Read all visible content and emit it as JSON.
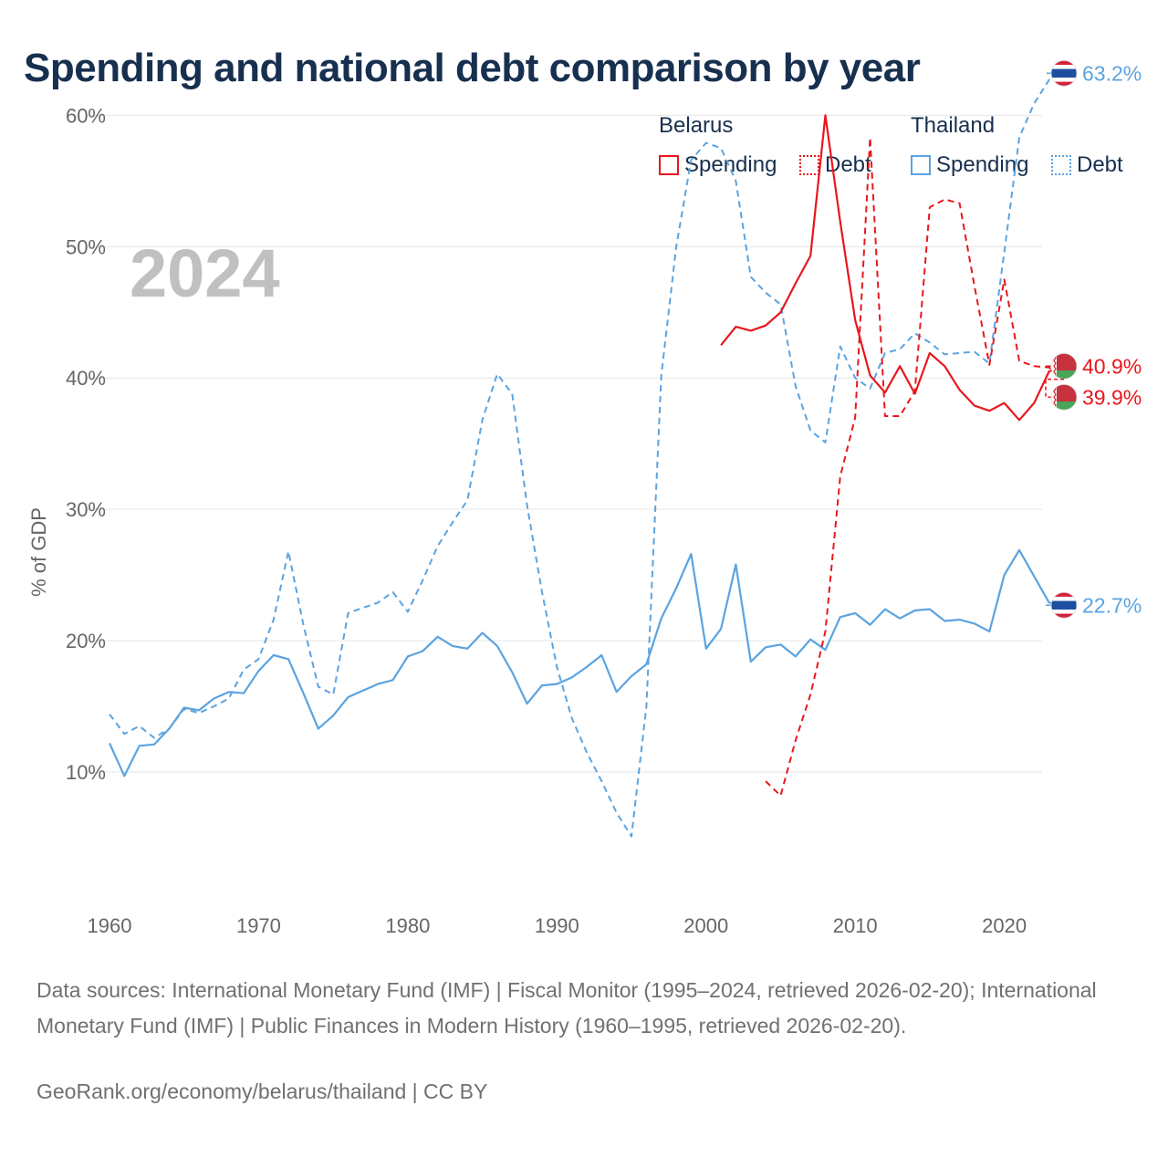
{
  "title": "Spending and national debt comparison by year",
  "legend": {
    "groups": [
      {
        "country": "Belarus",
        "spending_label": "Spending",
        "debt_label": "Debt",
        "color": "#e8171d"
      },
      {
        "country": "Thailand",
        "spending_label": "Spending",
        "debt_label": "Debt",
        "color": "#5ba3e0"
      }
    ]
  },
  "year_watermark": "2024",
  "footer": {
    "sources": "Data sources: International Monetary Fund (IMF) | Fiscal Monitor (1995–2024, retrieved 2026-02-20); International Monetary Fund (IMF) | Public Finances in Modern History (1960–1995, retrieved 2026-02-20).",
    "credit": "GeoRank.org/economy/belarus/thailand | CC BY"
  },
  "chart_data": {
    "type": "line",
    "title": "Spending and national debt comparison by year",
    "xlabel": "",
    "ylabel": "% of GDP",
    "xlim": [
      1960,
      2024
    ],
    "ylim": [
      0,
      66
    ],
    "x_ticks": [
      1960,
      1970,
      1980,
      1990,
      2000,
      2010,
      2020
    ],
    "y_ticks": [
      10,
      20,
      30,
      40,
      50,
      60
    ],
    "y_tick_labels": [
      "10%",
      "20%",
      "30%",
      "40%",
      "50%",
      "60%"
    ],
    "grid": true,
    "series": [
      {
        "name": "Thailand Spending",
        "country": "Thailand",
        "metric": "Spending",
        "color": "#5ba3e0",
        "dash": "solid",
        "end_label": "22.7%",
        "x": [
          1960,
          1961,
          1962,
          1963,
          1964,
          1965,
          1966,
          1967,
          1968,
          1969,
          1970,
          1971,
          1972,
          1973,
          1974,
          1975,
          1976,
          1977,
          1978,
          1979,
          1980,
          1981,
          1982,
          1983,
          1984,
          1985,
          1986,
          1987,
          1988,
          1989,
          1990,
          1991,
          1992,
          1993,
          1994,
          1995,
          1996,
          1997,
          1998,
          1999,
          2000,
          2001,
          2002,
          2003,
          2004,
          2005,
          2006,
          2007,
          2008,
          2009,
          2010,
          2011,
          2012,
          2013,
          2014,
          2015,
          2016,
          2017,
          2018,
          2019,
          2020,
          2021,
          2022,
          2023,
          2024
        ],
        "values": [
          12.2,
          9.7,
          12.0,
          12.1,
          13.3,
          14.9,
          14.7,
          15.6,
          16.1,
          16.0,
          17.7,
          18.9,
          18.6,
          16.0,
          13.3,
          14.3,
          15.7,
          16.2,
          16.7,
          17.0,
          18.8,
          19.2,
          20.3,
          19.6,
          19.4,
          20.6,
          19.6,
          17.6,
          15.2,
          16.6,
          16.7,
          17.2,
          18.0,
          18.9,
          16.1,
          17.3,
          18.2,
          21.7,
          24.0,
          26.6,
          19.4,
          20.9,
          25.8,
          18.4,
          19.5,
          19.7,
          18.8,
          20.1,
          19.3,
          21.8,
          22.1,
          21.2,
          22.4,
          21.7,
          22.3,
          22.4,
          21.5,
          21.6,
          21.3,
          20.7,
          25.0,
          26.9,
          24.9,
          22.9,
          22.7
        ]
      },
      {
        "name": "Thailand Debt",
        "country": "Thailand",
        "metric": "Debt",
        "color": "#5ba3e0",
        "dash": "dashed",
        "end_label": "63.2%",
        "x": [
          1960,
          1961,
          1962,
          1963,
          1964,
          1965,
          1966,
          1967,
          1968,
          1969,
          1970,
          1971,
          1972,
          1973,
          1974,
          1975,
          1976,
          1977,
          1978,
          1979,
          1980,
          1981,
          1982,
          1983,
          1984,
          1985,
          1986,
          1987,
          1988,
          1989,
          1990,
          1991,
          1992,
          1993,
          1994,
          1995,
          1996,
          1997,
          1998,
          1999,
          2000,
          2001,
          2002,
          2003,
          2004,
          2005,
          2006,
          2007,
          2008,
          2009,
          2010,
          2011,
          2012,
          2013,
          2014,
          2015,
          2016,
          2017,
          2018,
          2019,
          2020,
          2021,
          2022,
          2023,
          2024
        ],
        "values": [
          14.4,
          12.9,
          13.5,
          12.6,
          13.3,
          14.8,
          14.5,
          15.0,
          15.6,
          17.8,
          18.6,
          21.6,
          26.8,
          21.2,
          16.5,
          15.9,
          22.1,
          22.5,
          22.9,
          23.7,
          22.2,
          24.6,
          27.2,
          29.0,
          30.7,
          36.8,
          40.3,
          38.8,
          30.3,
          23.7,
          18.0,
          14.1,
          11.5,
          9.3,
          6.9,
          5.1,
          15.0,
          40.2,
          50.0,
          56.6,
          57.9,
          57.5,
          55.0,
          47.7,
          46.5,
          45.6,
          39.4,
          36.0,
          35.1,
          42.4,
          40.0,
          39.2,
          41.9,
          42.2,
          43.4,
          42.7,
          41.8,
          41.9,
          42.0,
          41.1,
          49.6,
          58.3,
          60.9,
          62.7,
          63.2
        ]
      },
      {
        "name": "Belarus Spending",
        "country": "Belarus",
        "metric": "Spending",
        "color": "#e8171d",
        "dash": "solid",
        "end_label": "40.9%",
        "x": [
          2001,
          2002,
          2003,
          2004,
          2005,
          2006,
          2007,
          2008,
          2009,
          2010,
          2011,
          2012,
          2013,
          2014,
          2015,
          2016,
          2017,
          2018,
          2019,
          2020,
          2021,
          2022,
          2023,
          2024
        ],
        "values": [
          42.5,
          43.9,
          43.6,
          44.0,
          45.0,
          47.2,
          49.3,
          60.0,
          51.9,
          44.4,
          40.2,
          38.9,
          40.9,
          38.8,
          41.9,
          40.9,
          39.1,
          37.9,
          37.5,
          38.1,
          36.8,
          38.1,
          40.5,
          40.9
        ]
      },
      {
        "name": "Belarus Debt",
        "country": "Belarus",
        "metric": "Debt",
        "color": "#e8171d",
        "dash": "dashed",
        "end_label": "39.9%",
        "x": [
          2004,
          2005,
          2006,
          2007,
          2008,
          2009,
          2010,
          2011,
          2012,
          2013,
          2014,
          2015,
          2016,
          2017,
          2018,
          2019,
          2020,
          2021,
          2022,
          2023,
          2024
        ],
        "values": [
          9.3,
          8.2,
          12.4,
          15.9,
          20.7,
          32.5,
          37.0,
          58.3,
          37.1,
          37.1,
          39.0,
          53.0,
          53.6,
          53.3,
          47.0,
          41.0,
          47.5,
          41.3,
          40.9,
          40.8,
          39.9
        ]
      }
    ]
  }
}
